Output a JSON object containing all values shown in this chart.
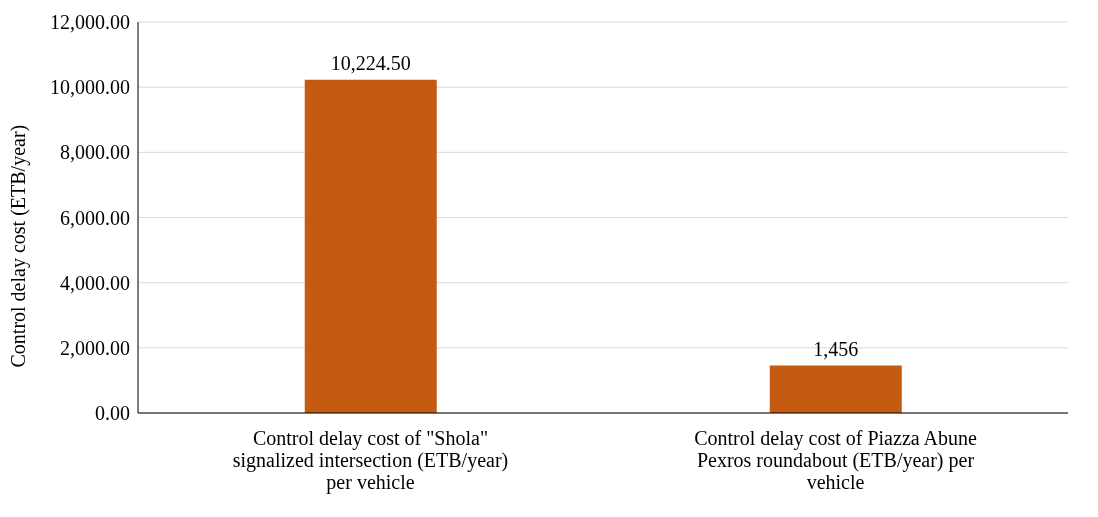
{
  "chart_data": {
    "type": "bar",
    "ylabel": "Control delay cost (ETB/year)",
    "categories": [
      "Control delay cost of \"Shola\" signalized intersection (ETB/year) per vehicle",
      "Control delay cost of Piazza Abune Pexros roundabout (ETB/year) per vehicle"
    ],
    "values": [
      10224.5,
      1456
    ],
    "color": "#c55a11",
    "value_labels": [
      "10,224.50",
      "1,456"
    ],
    "ylim": [
      0,
      12000
    ],
    "yticks": [
      {
        "value": 0,
        "label": "0.00"
      },
      {
        "value": 2000,
        "label": "2,000.00"
      },
      {
        "value": 4000,
        "label": "4,000.00"
      },
      {
        "value": 6000,
        "label": "6,000.00"
      },
      {
        "value": 8000,
        "label": "8,000.00"
      },
      {
        "value": 10000,
        "label": "10,000.00"
      },
      {
        "value": 12000,
        "label": "12,000.00"
      }
    ],
    "grid": "y"
  }
}
